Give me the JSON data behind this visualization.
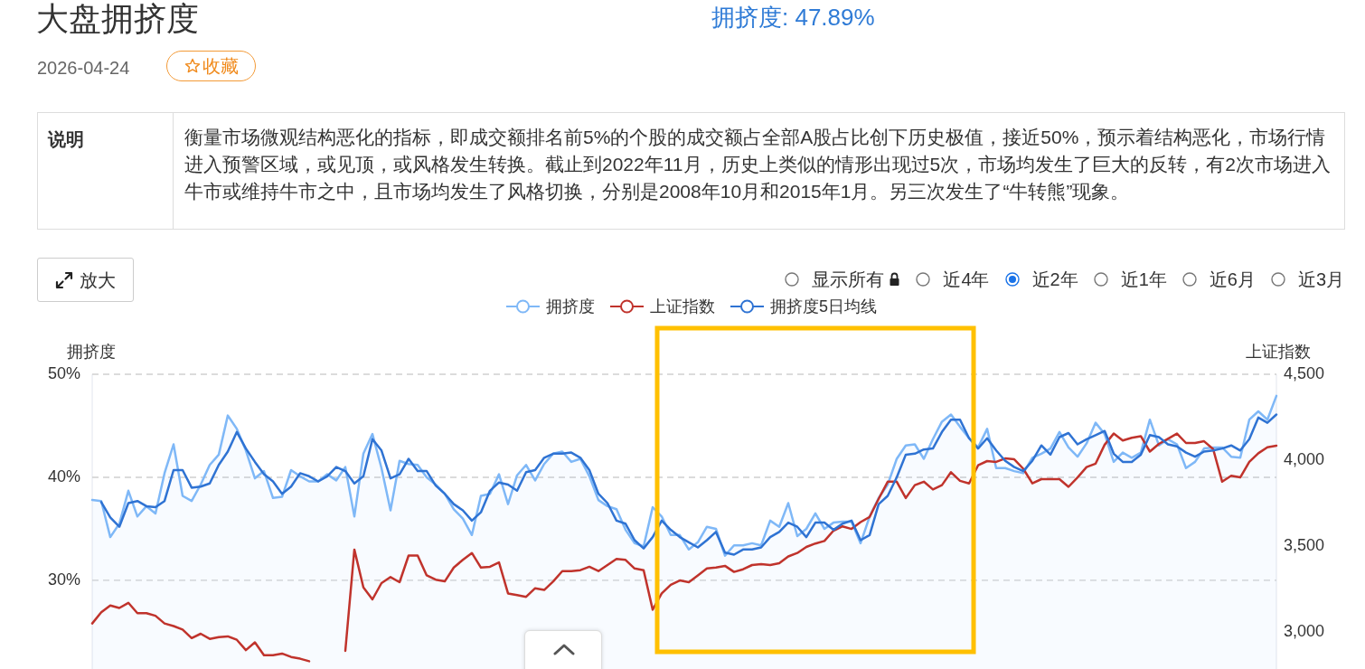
{
  "chart_data": {
    "type": "line",
    "title": "大盘拥挤度",
    "ylabel": "拥挤度",
    "y2label": "上证指数",
    "annotations": [
      "拥挤度: 47.89%",
      "2026-04-24",
      "收藏",
      "说明",
      "衡量市场微观结构恶化的指标，即成交额排名前5%的个股的成交额占全部A股占比创下历史极值，接近50%，预示着结构恶化，市场行情进入预警区域，或见顶，或风格发生转换。截止到2022年11月，历史上类似的情形出现过5次，市场均发生了巨大的反转，有2次市场进入牛市或维持牛市之中，且市场均发生了风格切换，分别是2008年10月和2015年1月。另三次发生了“牛转熊”现象。",
      "放大",
      "显示所有",
      "近4年",
      "近2年",
      "近1年",
      "近6月",
      "近3月"
    ],
    "categories": [
      null,
      null,
      null,
      null,
      null,
      null,
      null,
      null,
      null,
      null,
      null,
      null,
      null,
      null,
      null,
      null,
      null,
      null,
      null,
      null,
      null,
      null,
      null,
      null,
      null,
      null,
      null,
      null,
      null,
      null,
      null,
      null,
      null,
      null,
      null,
      null,
      null,
      null,
      null,
      null,
      null,
      null,
      null,
      null,
      null,
      null,
      null,
      null,
      null,
      null,
      null,
      null,
      null,
      null,
      null,
      null,
      null,
      null,
      null,
      null,
      null,
      null,
      null,
      null,
      null,
      null,
      null,
      null,
      null,
      null,
      null,
      null,
      null,
      null,
      null,
      null,
      null,
      null,
      null,
      null,
      null,
      null,
      null,
      null,
      null,
      null,
      null,
      null,
      null,
      null,
      null,
      null,
      null,
      null,
      null,
      null,
      null,
      null,
      null,
      null,
      null,
      null,
      null,
      null,
      null,
      null,
      null,
      null,
      null,
      null,
      null,
      null,
      null,
      null,
      null,
      null,
      null,
      null,
      null,
      null,
      null,
      null,
      null,
      null,
      null,
      null,
      null,
      null,
      null,
      null,
      null,
      null
    ],
    "series": [
      {
        "name": "拥挤度",
        "type": "area",
        "color": "#7fb8f7",
        "values": [
          37.8,
          37.7,
          34.2,
          35.5,
          38.7,
          36.2,
          37.2,
          36.5,
          40.4,
          43.2,
          38.2,
          37.7,
          39.3,
          41.2,
          42.2,
          46.0,
          44.7,
          42.6,
          39.9,
          40.6,
          38.0,
          38.1,
          40.7,
          40.1,
          39.6,
          39.6,
          40.3,
          39.7,
          41.0,
          36.2,
          42.3,
          44.2,
          40.9,
          36.8,
          41.6,
          41.3,
          41.2,
          40.0,
          39.3,
          38.4,
          36.9,
          36.0,
          34.4,
          38.2,
          38.4,
          40.3,
          37.4,
          40.2,
          41.2,
          39.7,
          41.3,
          42.3,
          42.5,
          41.5,
          41.8,
          40.1,
          37.8,
          37.2,
          36.9,
          34.9,
          33.6,
          33.3,
          37.1,
          36.2,
          34.4,
          34.4,
          33.0,
          33.7,
          35.2,
          35.0,
          32.4,
          33.4,
          33.4,
          33.6,
          33.4,
          35.8,
          35.2,
          37.5,
          34.3,
          35.0,
          36.5,
          35.0,
          35.6,
          35.7,
          35.7,
          33.6,
          36.2,
          38.0,
          39.3,
          41.8,
          43.1,
          43.2,
          41.8,
          43.7,
          45.4,
          46.1,
          44.9,
          43.8,
          42.9,
          44.7,
          40.9,
          40.9,
          40.6,
          40.4,
          41.9,
          42.3,
          42.8,
          44.4,
          42.9,
          42.0,
          43.3,
          45.3,
          44.2,
          41.5,
          42.4,
          41.9,
          42.4,
          45.6,
          43.1,
          43.7,
          43.2,
          40.9,
          41.5,
          42.8,
          42.9,
          42.9,
          42.0,
          41.9,
          45.6,
          46.4,
          45.6,
          47.9
        ]
      },
      {
        "name": "上证指数",
        "color": "#c0332c",
        "axis": "y2",
        "values": [
          3050,
          3115,
          3155,
          3140,
          3170,
          3110,
          3110,
          3095,
          3050,
          3035,
          3015,
          2965,
          2990,
          2960,
          2970,
          2975,
          2955,
          2895,
          2940,
          2865,
          2865,
          2875,
          2855,
          2845,
          2830,
          null,
          null,
          null,
          2890,
          3480,
          3260,
          3190,
          3285,
          3320,
          3290,
          3445,
          3445,
          3330,
          3305,
          3295,
          3375,
          3420,
          3460,
          3375,
          3380,
          3405,
          3225,
          3215,
          3205,
          3255,
          3245,
          3295,
          3355,
          3355,
          3360,
          3380,
          3355,
          3390,
          3425,
          3420,
          3370,
          3360,
          3130,
          3225,
          3275,
          3300,
          3290,
          3330,
          3370,
          3375,
          3385,
          3350,
          3365,
          3390,
          3395,
          3390,
          3400,
          3440,
          3460,
          3495,
          3515,
          3530,
          3590,
          3615,
          3600,
          3640,
          3670,
          3775,
          3875,
          3875,
          3780,
          3855,
          3875,
          3830,
          3855,
          3930,
          3880,
          3865,
          3970,
          3995,
          3990,
          4010,
          4005,
          3950,
          3865,
          3890,
          3890,
          3890,
          3845,
          3900,
          3960,
          3980,
          4090,
          4155,
          4115,
          4130,
          4140,
          4050,
          4095,
          4125,
          4155,
          4100,
          4100,
          4110,
          4065,
          3875,
          3910,
          3900,
          3990,
          4040,
          4075,
          4085
        ]
      },
      {
        "name": "拥挤度5日均线",
        "color": "#2f73d3",
        "values": [
          null,
          37.6,
          36.1,
          35.2,
          37.5,
          37.7,
          37.2,
          37.1,
          37.7,
          40.7,
          40.7,
          39.0,
          39.1,
          39.4,
          41.2,
          42.5,
          44.4,
          42.8,
          41.5,
          40.3,
          39.6,
          38.4,
          39.1,
          40.4,
          40.1,
          39.6,
          40.1,
          41.0,
          40.6,
          39.4,
          40.1,
          43.7,
          42.6,
          39.9,
          40.3,
          41.8,
          40.6,
          40.6,
          39.2,
          38.4,
          37.4,
          36.8,
          35.8,
          36.6,
          38.7,
          39.5,
          39.3,
          38.7,
          40.5,
          40.7,
          41.9,
          42.3,
          42.3,
          42.4,
          41.9,
          40.7,
          38.4,
          37.5,
          35.8,
          35.5,
          33.9,
          33.1,
          34.2,
          35.8,
          34.9,
          34.2,
          33.7,
          33.2,
          33.9,
          34.7,
          32.7,
          32.5,
          33.0,
          33.0,
          33.2,
          34.2,
          34.7,
          35.6,
          35.2,
          34.2,
          35.6,
          35.6,
          34.9,
          35.5,
          35.8,
          33.9,
          34.4,
          37.4,
          38.2,
          40.0,
          42.2,
          42.3,
          42.7,
          42.8,
          44.4,
          45.6,
          45.6,
          43.8,
          42.8,
          43.8,
          42.6,
          41.6,
          41.0,
          40.6,
          41.6,
          43.1,
          42.2,
          43.9,
          44.3,
          43.2,
          43.7,
          44.1,
          44.5,
          42.3,
          41.5,
          41.5,
          42.2,
          44.1,
          43.9,
          43.2,
          43.0,
          42.4,
          42.0,
          42.5,
          42.6,
          42.8,
          43.1,
          42.6,
          43.7,
          45.8,
          45.3,
          46.1
        ]
      }
    ],
    "ylim": [
      21.4,
      50
    ],
    "yticks": [
      {
        "value": 30,
        "label": "30%"
      },
      {
        "value": 40,
        "label": "40%"
      },
      {
        "value": 50,
        "label": "50%"
      }
    ],
    "y2lim": [
      2785,
      4500
    ],
    "y2ticks": [
      {
        "value": 3000,
        "label": "3,000"
      },
      {
        "value": 3500,
        "label": "3,500"
      },
      {
        "value": 4000,
        "label": "4,000"
      },
      {
        "value": 4500,
        "label": "4,500"
      }
    ],
    "grid": "y",
    "legend": "top",
    "line_style": "solid"
  }
}
